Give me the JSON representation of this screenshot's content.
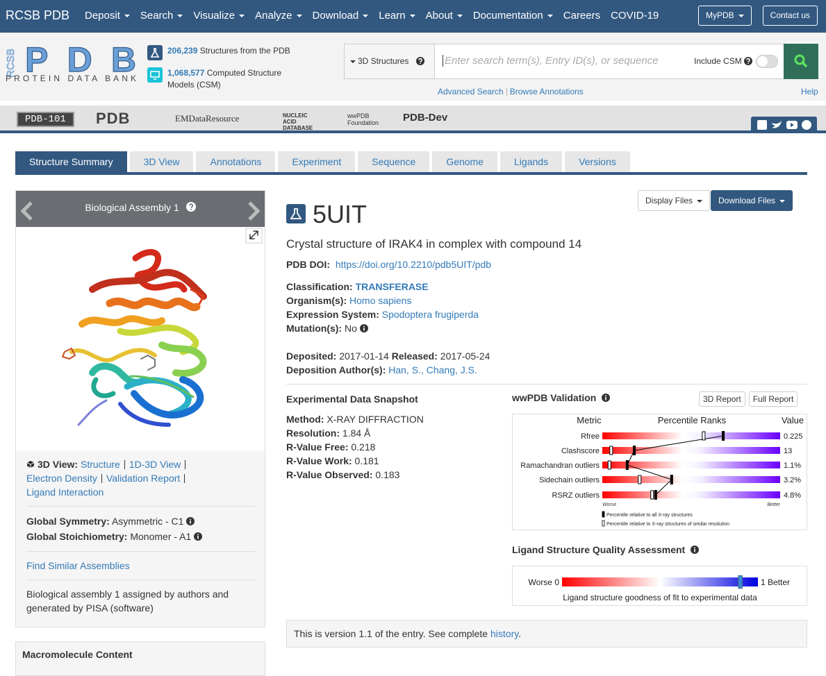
{
  "navbar": {
    "brand": "RCSB PDB",
    "menu": [
      {
        "label": "Deposit",
        "dropdown": true
      },
      {
        "label": "Search",
        "dropdown": true
      },
      {
        "label": "Visualize",
        "dropdown": true
      },
      {
        "label": "Analyze",
        "dropdown": true
      },
      {
        "label": "Download",
        "dropdown": true
      },
      {
        "label": "Learn",
        "dropdown": true
      },
      {
        "label": "About",
        "dropdown": true
      },
      {
        "label": "Documentation",
        "dropdown": true
      },
      {
        "label": "Careers",
        "dropdown": false
      },
      {
        "label": "COVID-19",
        "dropdown": false
      }
    ],
    "buttons": [
      {
        "label": "MyPDB",
        "dropdown": true
      },
      {
        "label": "Contact us",
        "dropdown": false
      }
    ]
  },
  "logo": {
    "side": "RCSB",
    "mark": "PDB",
    "subtitle": "PROTEIN DATA BANK"
  },
  "stats": [
    {
      "count": "206,239",
      "text": "Structures from the PDB"
    },
    {
      "count": "1,068,577",
      "text": "Computed Structure Models (CSM)"
    }
  ],
  "search": {
    "scope": "3D Structures",
    "placeholder": "Enter search term(s), Entry ID(s), or sequence",
    "csm": "Include CSM",
    "links": [
      "Advanced Search",
      "Browse Annotations"
    ],
    "help": "Help"
  },
  "partners": [
    "PDB-101",
    "PDB",
    "EMDataResource",
    "NUCLEIC ACID DATABASE",
    "wwPDB Foundation",
    "PDB-Dev"
  ],
  "tabs": {
    "items": [
      "Structure Summary",
      "3D View",
      "Annotations",
      "Experiment",
      "Sequence",
      "Genome",
      "Ligands",
      "Versions"
    ],
    "active": 0
  },
  "assembly": {
    "title": "Biological Assembly 1",
    "view_label": "3D View:",
    "view_links": [
      "Structure",
      "1D-3D View",
      "Electron Density",
      "Validation Report",
      "Ligand Interaction"
    ],
    "symmetry": {
      "label": "Global Symmetry:",
      "value": "Asymmetric - C1"
    },
    "stoichiometry": {
      "label": "Global Stoichiometry:",
      "value": "Monomer - A1"
    },
    "similar": "Find Similar Assemblies",
    "note": "Biological assembly 1 assigned by authors and generated by PISA (software)"
  },
  "macromolecule": "Macromolecule Content",
  "entry": {
    "file_buttons": [
      "Display Files",
      "Download Files"
    ],
    "id": "5UIT",
    "title": "Crystal structure of IRAK4 in complex with compound 14",
    "doi": {
      "label": "PDB DOI:",
      "value": "https://doi.org/10.2210/pdb5UIT/pdb"
    },
    "fields": [
      {
        "label": "Classification:",
        "value": "TRANSFERASE",
        "link": true
      },
      {
        "label": "Organism(s):",
        "value": "Homo sapiens",
        "link": true
      },
      {
        "label": "Expression System:",
        "value": "Spodoptera frugiperda",
        "link": true
      },
      {
        "label": "Mutation(s):",
        "value": "No",
        "link": false
      }
    ],
    "dates": [
      {
        "label": "Deposited:",
        "value": "2017-01-14"
      },
      {
        "label": "Released:",
        "value": "2017-05-24"
      }
    ],
    "authors": {
      "label": "Deposition Author(s):",
      "names": [
        "Han, S.,",
        "Chang, J.S."
      ]
    }
  },
  "snapshot": {
    "title": "Experimental Data Snapshot",
    "fields": [
      {
        "label": "Method:",
        "value": "X-RAY DIFFRACTION"
      },
      {
        "label": "Resolution:",
        "value": "1.84 Å"
      },
      {
        "label": "R-Value Free:",
        "value": "0.218"
      },
      {
        "label": "R-Value Work:",
        "value": "0.181"
      },
      {
        "label": "R-Value Observed:",
        "value": "0.183"
      }
    ]
  },
  "validation": {
    "title": "wwPDB Validation",
    "buttons": [
      "3D Report",
      "Full Report"
    ],
    "headers": [
      "Metric",
      "Percentile Ranks",
      "Value"
    ],
    "metrics": [
      {
        "name": "Rfree",
        "value": "0.225",
        "percentile_all": 68,
        "percentile_similar": 57
      },
      {
        "name": "Clashscore",
        "value": "13",
        "percentile_all": 18,
        "percentile_similar": 5
      },
      {
        "name": "Ramachandran outliers",
        "value": "1.1%",
        "percentile_all": 14,
        "percentile_similar": 4
      },
      {
        "name": "Sidechain outliers",
        "value": "3.2%",
        "percentile_all": 39,
        "percentile_similar": 21
      },
      {
        "name": "RSRZ outliers",
        "value": "4.8%",
        "percentile_all": 30,
        "percentile_similar": 28
      }
    ],
    "worse": "Worse",
    "better": "Better",
    "legend": [
      "Percentile relative to all X-ray structures",
      "Percentile relative to X-ray structures of similar resolution"
    ]
  },
  "ligand_quality": {
    "title": "Ligand Structure Quality Assessment",
    "worse": "Worse 0",
    "better": "1 Better",
    "caption": "Ligand structure goodness of fit to experimental data",
    "score": 0.91
  },
  "version": {
    "text": "This is version 1.1 of the entry. See complete",
    "link": "history",
    "end": "."
  }
}
